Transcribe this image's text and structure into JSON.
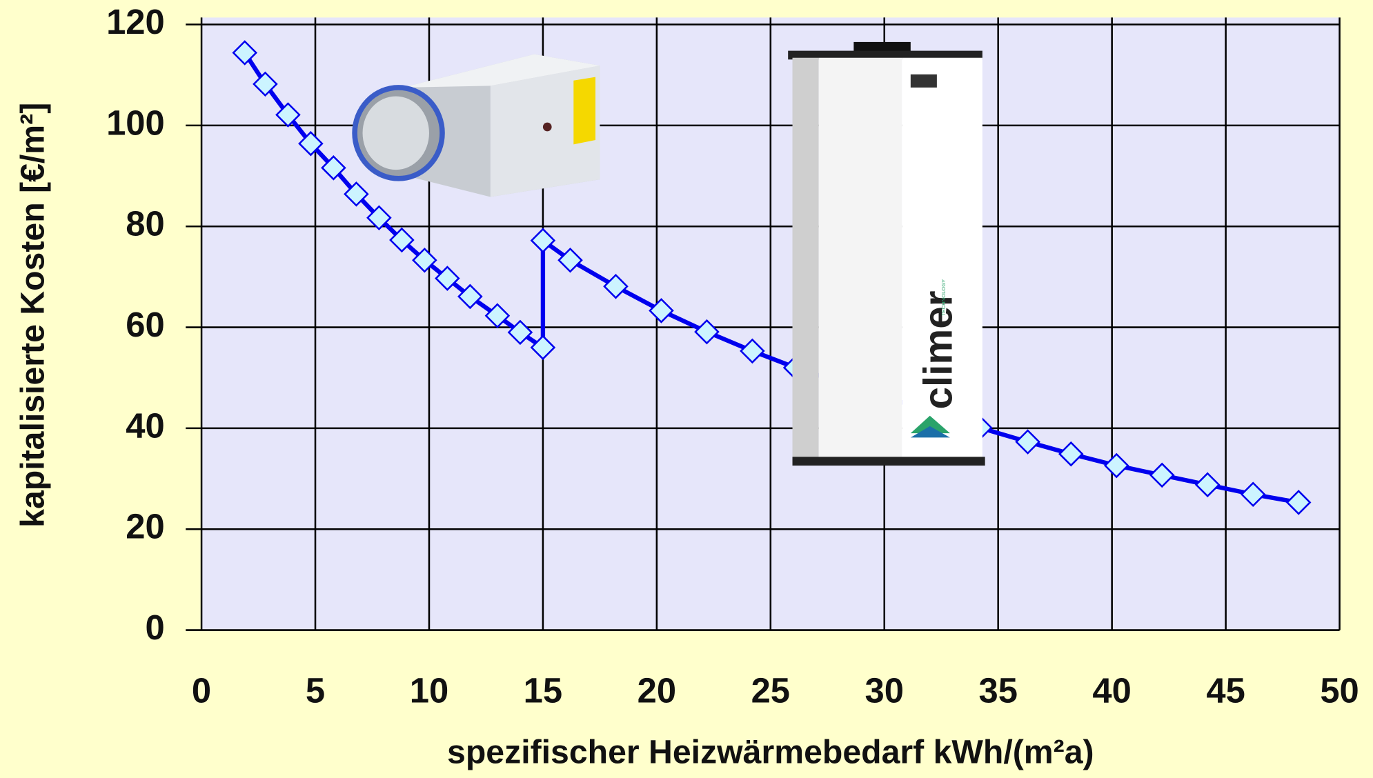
{
  "chart_data": {
    "type": "line",
    "x_label": "spezifischer Heizwärmebedarf kWh/(m²a)",
    "y_label": "kapitalisierte Kosten [€/m²]",
    "xlim": [
      0,
      50
    ],
    "xticks": [
      0,
      5,
      10,
      15,
      20,
      25,
      30,
      35,
      40,
      45,
      50
    ],
    "ylim": [
      0,
      120
    ],
    "yticks": [
      0,
      20,
      40,
      60,
      80,
      100,
      120
    ],
    "grid": true,
    "annotations": [
      "climer",
      "TECHNOLOGY"
    ],
    "series": [
      {
        "color": "#0000ee",
        "x": [
          1.9,
          2.8,
          3.8,
          4.8,
          5.8,
          6.8,
          7.8,
          8.8,
          9.8,
          10.8,
          11.8,
          13.0,
          14.0,
          15.0,
          15.0,
          16.2,
          18.2,
          20.2,
          22.2,
          24.2,
          26.1,
          34.2,
          36.3,
          38.2,
          40.2,
          42.2,
          44.2,
          46.2,
          48.2
        ],
        "values": [
          114.4,
          108.2,
          102.1,
          96.4,
          91.6,
          86.4,
          81.7,
          77.3,
          73.3,
          69.7,
          66.1,
          62.3,
          59.0,
          56.0,
          77.2,
          73.3,
          68.1,
          63.3,
          59.1,
          55.3,
          52.0,
          40.1,
          37.3,
          34.9,
          32.6,
          30.7,
          28.8,
          26.9,
          25.3
        ]
      }
    ]
  }
}
